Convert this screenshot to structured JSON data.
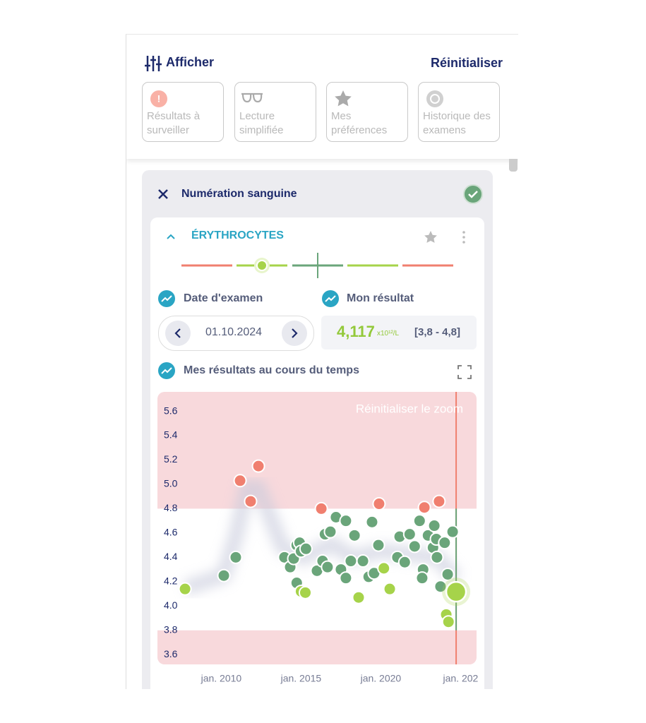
{
  "header": {
    "title": "Afficher",
    "reset": "Réinitialiser"
  },
  "filters": [
    "Résultats à surveiller",
    "Lecture simplifiée",
    "Mes préférences",
    "Historique des examens"
  ],
  "section": {
    "title": "Numération sanguine",
    "test": "ÉRYTHROCYTES"
  },
  "exam": {
    "date_label": "Date d'examen",
    "date": "01.10.2024",
    "result_label": "Mon résultat",
    "result": "4,117",
    "unit": "x10¹²/L",
    "range": "[3,8 - 4,8]"
  },
  "chart_title": "Mes résultats au cours du temps",
  "chart_data": {
    "type": "scatter",
    "annotation": "Réinitialiser le zoom",
    "x": [
      2007.73,
      2010.16,
      2010.91,
      2011.18,
      2012.33,
      2011.84,
      2013.96,
      2014.32,
      2014.54,
      2014.73,
      2014.91,
      2015.0,
      2015.31,
      2014.73,
      2015.0,
      2015.27,
      2016.0,
      2016.27,
      2016.35,
      2016.66,
      2016.5,
      2016.84,
      2017.19,
      2017.81,
      2017.5,
      2017.81,
      2018.12,
      2018.35,
      2018.61,
      2018.88,
      2019.24,
      2019.58,
      2019.45,
      2019.85,
      2019.89,
      2020.19,
      2020.56,
      2021.04,
      2021.18,
      2021.5,
      2021.81,
      2022.12,
      2022.43,
      2022.73,
      2022.65,
      2022.59,
      2022.96,
      2023.27,
      2023.35,
      2023.48,
      2023.65,
      2023.52,
      2023.74,
      2024.0,
      2024.19,
      2024.5,
      2024.1,
      2024.24,
      2024.72
    ],
    "values": [
      4.14,
      4.25,
      4.4,
      5.03,
      5.15,
      4.86,
      4.4,
      4.32,
      4.39,
      4.5,
      4.52,
      4.45,
      4.47,
      4.19,
      4.12,
      4.11,
      4.29,
      4.8,
      4.37,
      4.32,
      4.59,
      4.61,
      4.73,
      4.7,
      4.3,
      4.23,
      4.37,
      4.58,
      4.07,
      4.37,
      4.24,
      4.27,
      4.69,
      4.5,
      4.84,
      4.31,
      4.14,
      4.4,
      4.57,
      4.36,
      4.59,
      4.49,
      4.7,
      4.81,
      4.3,
      4.23,
      4.58,
      4.48,
      4.66,
      4.55,
      4.86,
      4.4,
      4.16,
      4.52,
      4.26,
      4.61,
      3.93,
      3.87,
      4.117
    ],
    "point_colors": [
      "#a6d34a",
      "#6aa57a",
      "#6aa57a",
      "#f07f6f",
      "#f07f6f",
      "#f07f6f",
      "#6aa57a",
      "#6aa57a",
      "#6aa57a",
      "#6aa57a",
      "#6aa57a",
      "#6aa57a",
      "#6aa57a",
      "#6aa57a",
      "#a6d34a",
      "#a6d34a",
      "#6aa57a",
      "#f07f6f",
      "#6aa57a",
      "#6aa57a",
      "#6aa57a",
      "#6aa57a",
      "#6aa57a",
      "#6aa57a",
      "#6aa57a",
      "#6aa57a",
      "#6aa57a",
      "#6aa57a",
      "#a6d34a",
      "#6aa57a",
      "#6aa57a",
      "#6aa57a",
      "#6aa57a",
      "#6aa57a",
      "#f07f6f",
      "#a6d34a",
      "#a6d34a",
      "#6aa57a",
      "#6aa57a",
      "#6aa57a",
      "#6aa57a",
      "#6aa57a",
      "#6aa57a",
      "#f07f6f",
      "#6aa57a",
      "#6aa57a",
      "#6aa57a",
      "#6aa57a",
      "#6aa57a",
      "#6aa57a",
      "#f07f6f",
      "#6aa57a",
      "#6aa57a",
      "#6aa57a",
      "#6aa57a",
      "#6aa57a",
      "#a6d34a",
      "#a6d34a",
      "#a6d34a"
    ],
    "selected_index": 58,
    "reference_range": [
      3.8,
      4.8
    ],
    "xlim": [
      2006,
      2026
    ],
    "ylim": [
      3.52,
      5.76
    ],
    "xticks": [
      {
        "value": 2010,
        "label": "jan. 2010"
      },
      {
        "value": 2015,
        "label": "jan. 2015"
      },
      {
        "value": 2020,
        "label": "jan. 2020"
      },
      {
        "value": 2025,
        "label": "jan. 202"
      }
    ],
    "yticks": [
      3.6,
      3.8,
      {
        "value": 4,
        "label": "4.0"
      },
      4.2,
      4.4,
      4.6,
      4.8,
      {
        "value": 5,
        "label": "5.0"
      },
      5.2,
      5.4,
      5.6
    ]
  }
}
